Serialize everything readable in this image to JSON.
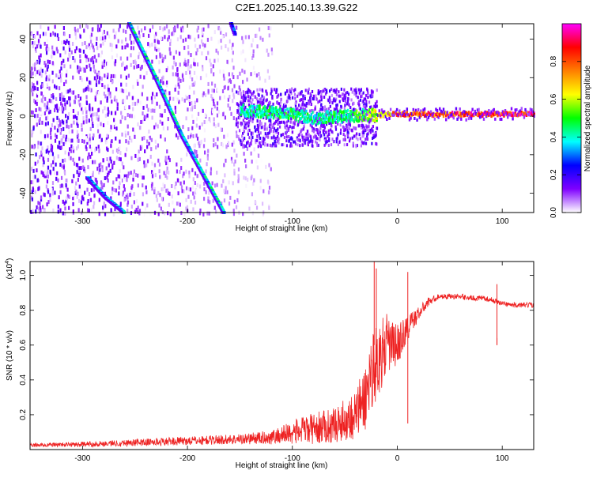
{
  "title": "C2E1.2025.140.13.39.G22",
  "chart_data": [
    {
      "type": "heatmap",
      "title": "",
      "xlabel": "Height of straight line (km)",
      "ylabel": "Frequency (Hz)",
      "xlim": [
        -350,
        130
      ],
      "ylim": [
        -50,
        48
      ],
      "x_ticks": [
        -300,
        -200,
        -100,
        0,
        100
      ],
      "y_ticks": [
        -40,
        -20,
        0,
        20,
        40
      ],
      "x_tick_labels": [
        "-300",
        "-200",
        "-100",
        "0",
        "100"
      ],
      "y_tick_labels": [
        "-40",
        "-20",
        "0",
        "20",
        "40"
      ],
      "colorbar": {
        "label": "Normalized spectral amplitude",
        "range": [
          0,
          1
        ],
        "ticks": [
          0.0,
          0.2,
          0.4,
          0.6,
          0.8
        ],
        "tick_labels": [
          "0.0",
          "0.2",
          "0.4",
          "0.6",
          "0.8"
        ],
        "colors": [
          "#ffffff",
          "#7f00ff",
          "#0000ff",
          "#00ffff",
          "#00ff00",
          "#ffff00",
          "#ff7f00",
          "#ff0000",
          "#ff00ff"
        ]
      },
      "features": [
        {
          "name": "carrier",
          "points": [
            [
              -150,
              3
            ],
            [
              -110,
              1.5
            ],
            [
              -80,
              -1
            ],
            [
              -50,
              0
            ],
            [
              -30,
              0.5
            ],
            [
              0,
              1
            ],
            [
              130,
              1
            ]
          ],
          "amplitude": [
            0.45,
            0.5,
            0.45,
            0.5,
            0.55,
            0.85,
            0.95
          ]
        },
        {
          "name": "diagonal-trace-1",
          "points": [
            [
              -255,
              48
            ],
            [
              -230,
              20
            ],
            [
              -205,
              -10
            ],
            [
              -185,
              -30
            ],
            [
              -165,
              -50
            ]
          ],
          "amplitude": 0.4
        },
        {
          "name": "diagonal-trace-2",
          "points": [
            [
              -295,
              -32
            ],
            [
              -278,
              -42
            ],
            [
              -260,
              -50
            ]
          ],
          "amplitude": 0.35
        },
        {
          "name": "diagonal-trace-3",
          "points": [
            [
              -158,
              48
            ],
            [
              -154,
              42
            ]
          ],
          "amplitude": 0.3
        }
      ],
      "noise_extent_x": [
        -350,
        -120
      ]
    },
    {
      "type": "line",
      "title": "",
      "xlabel": "Height of straight line (km)",
      "ylabel": "SNR (10 * v/v)",
      "y_scale_label": "(x10",
      "y_scale_exponent": "4",
      "xlim": [
        -350,
        130
      ],
      "ylim": [
        0,
        1.08
      ],
      "x_ticks": [
        -300,
        -200,
        -100,
        0,
        100
      ],
      "y_ticks": [
        0.2,
        0.4,
        0.6,
        0.8,
        1.0
      ],
      "x_tick_labels": [
        "-300",
        "-200",
        "-100",
        "0",
        "100"
      ],
      "y_tick_labels": [
        "0.2",
        "0.4",
        "0.6",
        "0.8",
        "1.0"
      ],
      "series": [
        {
          "color": "#ee2222",
          "x": [
            -350,
            -300,
            -250,
            -200,
            -150,
            -120,
            -100,
            -80,
            -60,
            -50,
            -40,
            -30,
            -25,
            -20,
            -15,
            -10,
            -5,
            0,
            10,
            20,
            30,
            40,
            50,
            60,
            70,
            80,
            90,
            95,
            100,
            110,
            120,
            130
          ],
          "y": [
            0.025,
            0.03,
            0.04,
            0.05,
            0.06,
            0.07,
            0.1,
            0.12,
            0.14,
            0.17,
            0.2,
            0.3,
            0.45,
            0.5,
            0.55,
            0.6,
            0.6,
            0.6,
            0.7,
            0.78,
            0.85,
            0.88,
            0.88,
            0.88,
            0.87,
            0.87,
            0.86,
            0.85,
            0.84,
            0.83,
            0.83,
            0.83
          ],
          "noise": [
            0.01,
            0.015,
            0.02,
            0.025,
            0.03,
            0.04,
            0.07,
            0.09,
            0.1,
            0.12,
            0.15,
            0.2,
            0.22,
            0.22,
            0.2,
            0.18,
            0.15,
            0.12,
            0.08,
            0.04,
            0.025,
            0.015,
            0.015,
            0.015,
            0.015,
            0.015,
            0.015,
            0.015,
            0.015,
            0.015,
            0.015,
            0.015
          ]
        }
      ],
      "spikes": [
        {
          "x": -22,
          "y": 1.08
        },
        {
          "x": -20,
          "y": 1.04
        },
        {
          "x": 10,
          "y": 1.02
        },
        {
          "x": 10,
          "y": 0.15
        },
        {
          "x": 95,
          "y": 0.95
        },
        {
          "x": 95,
          "y": 0.64
        }
      ]
    }
  ]
}
